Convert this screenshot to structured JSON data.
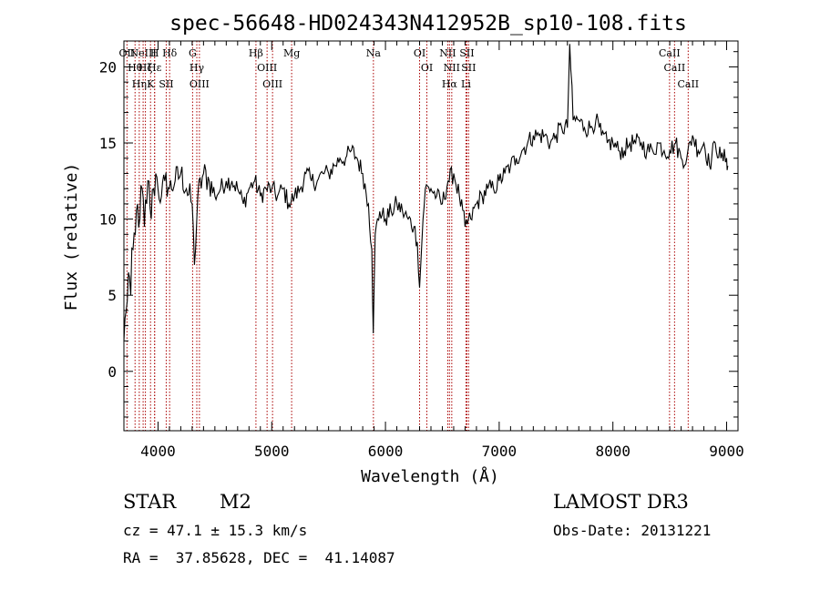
{
  "chart_data": {
    "type": "line",
    "title": "spec-56648-HD024343N412952B_sp10-108.fits",
    "xlabel": "Wavelength (Å)",
    "ylabel": "Flux (relative)",
    "xlim": [
      3700,
      9100
    ],
    "ylim": [
      -3.9,
      21.7
    ],
    "xticks": [
      4000,
      5000,
      6000,
      7000,
      8000,
      9000
    ],
    "yticks": [
      0,
      5,
      10,
      15,
      20
    ],
    "grid": false,
    "legend": "none",
    "series": [
      {
        "x": [
          3700,
          3720,
          3740,
          3760,
          3780,
          3800,
          3820,
          3840,
          3860,
          3880,
          3900,
          3920,
          3940,
          3960,
          3980,
          4000,
          4030,
          4060,
          4100,
          4150,
          4200,
          4250,
          4300,
          4320,
          4350,
          4400,
          4450,
          4500,
          4550,
          4600,
          4650,
          4700,
          4750,
          4800,
          4850,
          4900,
          4950,
          5000,
          5050,
          5100,
          5150,
          5200,
          5250,
          5300,
          5350,
          5400,
          5450,
          5500,
          5550,
          5600,
          5650,
          5700,
          5750,
          5800,
          5850,
          5880,
          5893,
          5910,
          5950,
          6000,
          6050,
          6100,
          6150,
          6200,
          6250,
          6280,
          6300,
          6330,
          6350,
          6400,
          6450,
          6500,
          6550,
          6600,
          6650,
          6700,
          6750,
          6800,
          6850,
          6900,
          6950,
          7000,
          7050,
          7100,
          7150,
          7200,
          7250,
          7300,
          7350,
          7400,
          7450,
          7500,
          7550,
          7600,
          7620,
          7650,
          7700,
          7750,
          7800,
          7850,
          7900,
          7950,
          8000,
          8050,
          8100,
          8150,
          8200,
          8250,
          8300,
          8350,
          8400,
          8450,
          8500,
          8550,
          8600,
          8650,
          8700,
          8750,
          8800,
          8850,
          8900,
          8950,
          9000,
          9010
        ],
        "y": [
          2,
          4,
          6.5,
          5,
          8,
          9,
          11,
          10,
          12,
          9.5,
          11,
          12.5,
          10,
          12,
          13,
          12,
          11.5,
          12.5,
          12,
          12.5,
          13,
          12,
          11,
          7,
          11.5,
          13,
          12.5,
          11.5,
          12,
          12.5,
          12.5,
          12,
          11,
          12,
          12.5,
          11.5,
          12,
          12,
          11.5,
          12,
          11,
          11.5,
          12,
          13,
          12.5,
          12.5,
          13,
          13,
          13.5,
          14,
          14,
          14.5,
          14,
          13,
          11,
          8,
          2.5,
          9,
          10.5,
          10,
          10.5,
          11,
          10.5,
          10,
          9.5,
          8.5,
          5.5,
          10,
          12,
          12,
          11.5,
          11,
          12.5,
          13,
          11.5,
          9.5,
          10,
          11,
          11.5,
          12,
          12,
          12.5,
          13,
          13.5,
          14,
          14.5,
          15,
          15.5,
          15.5,
          15.5,
          15,
          15.5,
          16,
          16,
          21.5,
          16.5,
          16.5,
          16,
          16,
          16.5,
          15.5,
          15,
          15,
          14.5,
          14.5,
          15,
          15,
          15,
          14.5,
          14.5,
          15,
          14.5,
          14.5,
          15,
          14,
          14,
          15.5,
          14.5,
          15,
          13.5,
          15,
          14,
          14,
          13.5
        ]
      }
    ],
    "lines": [
      {
        "x": 3727,
        "label": "OII"
      },
      {
        "x": 3798,
        "label": "Hθ"
      },
      {
        "x": 3835,
        "label": "Hη"
      },
      {
        "x": 3869,
        "label": "NeIII"
      },
      {
        "x": 3889,
        "label": "Hζ"
      },
      {
        "x": 3934,
        "label": "K"
      },
      {
        "x": 3970,
        "label": "H"
      },
      {
        "x": 3970,
        "label": "Hε"
      },
      {
        "x": 4072,
        "label": "SII"
      },
      {
        "x": 4102,
        "label": "Hδ"
      },
      {
        "x": 4304,
        "label": "G"
      },
      {
        "x": 4341,
        "label": "Hγ"
      },
      {
        "x": 4364,
        "label": "OIII"
      },
      {
        "x": 4861,
        "label": "Hβ"
      },
      {
        "x": 4959,
        "label": "OIII"
      },
      {
        "x": 5007,
        "label": "OIII"
      },
      {
        "x": 5175,
        "label": "Mg"
      },
      {
        "x": 5894,
        "label": "Na"
      },
      {
        "x": 6300,
        "label": "OI"
      },
      {
        "x": 6364,
        "label": "OI"
      },
      {
        "x": 6548,
        "label": "NII"
      },
      {
        "x": 6563,
        "label": "Hα"
      },
      {
        "x": 6583,
        "label": "NII"
      },
      {
        "x": 6708,
        "label": "Li"
      },
      {
        "x": 6716,
        "label": "SII"
      },
      {
        "x": 6731,
        "label": "SII"
      },
      {
        "x": 8498,
        "label": "CaII"
      },
      {
        "x": 8542,
        "label": "CaII"
      },
      {
        "x": 8662,
        "label": "CaII"
      }
    ]
  },
  "info": {
    "object_class": "STAR",
    "subclass": "M2",
    "survey": "LAMOST DR3",
    "redshift": "cz = 47.1 ± 15.3 km/s",
    "obs_date": "Obs-Date: 20131221",
    "coords": "RA =  37.85628, DEC =  41.14087"
  },
  "colors": {
    "line_markers": "#aa0000",
    "spectrum": "#000000"
  }
}
